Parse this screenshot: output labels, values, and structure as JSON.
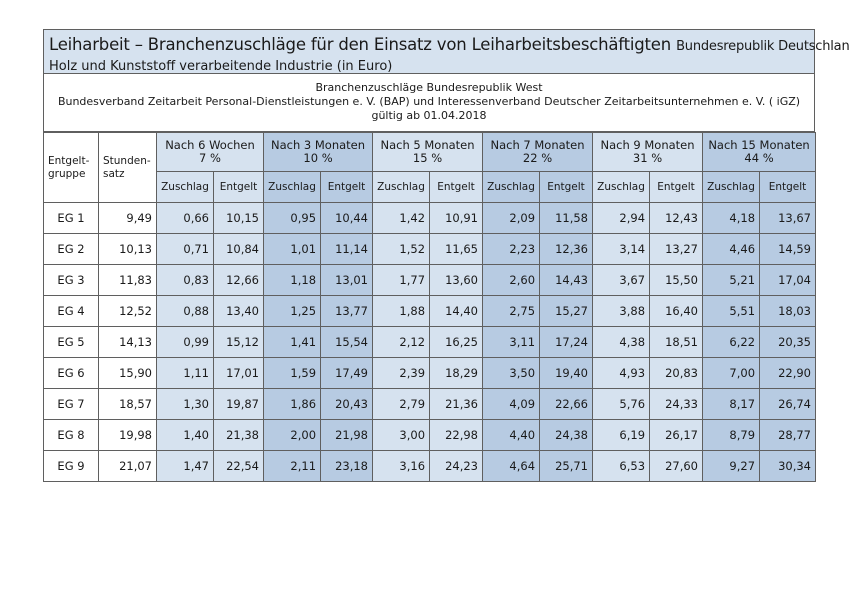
{
  "title": {
    "main": "Leiharbeit – Branchenzuschläge für den Einsatz von Leiharbeitsbeschäftigten",
    "region": "Bundesrepublik Deutschland",
    "industry": "Holz und Kunststoff verarbeitende Industrie (in Euro)"
  },
  "info": {
    "line1": "Branchenzuschläge Bundesrepublik West",
    "line2": "Bundesverband Zeitarbeit Personal-Dienstleistungen e. V. (BAP) und Interessenverband Deutscher Zeitarbeitsunternehmen e. V. ( iGZ)",
    "line3": "gültig ab 01.04.2018"
  },
  "table": {
    "col_group": "Entgelt-\ngruppe",
    "col_rate": "Stunden-\nsatz",
    "periods": [
      {
        "label": "Nach 6 Wochen",
        "pct": "7 %",
        "shade": "light"
      },
      {
        "label": "Nach 3 Monaten",
        "pct": "10 %",
        "shade": "dark"
      },
      {
        "label": "Nach 5 Monaten",
        "pct": "15 %",
        "shade": "light"
      },
      {
        "label": "Nach 7 Monaten",
        "pct": "22 %",
        "shade": "dark"
      },
      {
        "label": "Nach 9 Monaten",
        "pct": "31 %",
        "shade": "light"
      },
      {
        "label": "Nach 15 Monaten",
        "pct": "44 %",
        "shade": "dark"
      }
    ],
    "sub_zuschlag": "Zuschlag",
    "sub_entgelt": "Entgelt",
    "rows": [
      {
        "eg": "EG 1",
        "rate": "9,49",
        "vals": [
          "0,66",
          "10,15",
          "0,95",
          "10,44",
          "1,42",
          "10,91",
          "2,09",
          "11,58",
          "2,94",
          "12,43",
          "4,18",
          "13,67"
        ]
      },
      {
        "eg": "EG 2",
        "rate": "10,13",
        "vals": [
          "0,71",
          "10,84",
          "1,01",
          "11,14",
          "1,52",
          "11,65",
          "2,23",
          "12,36",
          "3,14",
          "13,27",
          "4,46",
          "14,59"
        ]
      },
      {
        "eg": "EG 3",
        "rate": "11,83",
        "vals": [
          "0,83",
          "12,66",
          "1,18",
          "13,01",
          "1,77",
          "13,60",
          "2,60",
          "14,43",
          "3,67",
          "15,50",
          "5,21",
          "17,04"
        ]
      },
      {
        "eg": "EG 4",
        "rate": "12,52",
        "vals": [
          "0,88",
          "13,40",
          "1,25",
          "13,77",
          "1,88",
          "14,40",
          "2,75",
          "15,27",
          "3,88",
          "16,40",
          "5,51",
          "18,03"
        ]
      },
      {
        "eg": "EG 5",
        "rate": "14,13",
        "vals": [
          "0,99",
          "15,12",
          "1,41",
          "15,54",
          "2,12",
          "16,25",
          "3,11",
          "17,24",
          "4,38",
          "18,51",
          "6,22",
          "20,35"
        ]
      },
      {
        "eg": "EG 6",
        "rate": "15,90",
        "vals": [
          "1,11",
          "17,01",
          "1,59",
          "17,49",
          "2,39",
          "18,29",
          "3,50",
          "19,40",
          "4,93",
          "20,83",
          "7,00",
          "22,90"
        ]
      },
      {
        "eg": "EG 7",
        "rate": "18,57",
        "vals": [
          "1,30",
          "19,87",
          "1,86",
          "20,43",
          "2,79",
          "21,36",
          "4,09",
          "22,66",
          "5,76",
          "24,33",
          "8,17",
          "26,74"
        ]
      },
      {
        "eg": "EG 8",
        "rate": "19,98",
        "vals": [
          "1,40",
          "21,38",
          "2,00",
          "21,98",
          "3,00",
          "22,98",
          "4,40",
          "24,38",
          "6,19",
          "26,17",
          "8,79",
          "28,77"
        ]
      },
      {
        "eg": "EG 9",
        "rate": "21,07",
        "vals": [
          "1,47",
          "22,54",
          "2,11",
          "23,18",
          "3,16",
          "24,23",
          "4,64",
          "25,71",
          "6,53",
          "27,60",
          "9,27",
          "30,34"
        ]
      }
    ]
  }
}
